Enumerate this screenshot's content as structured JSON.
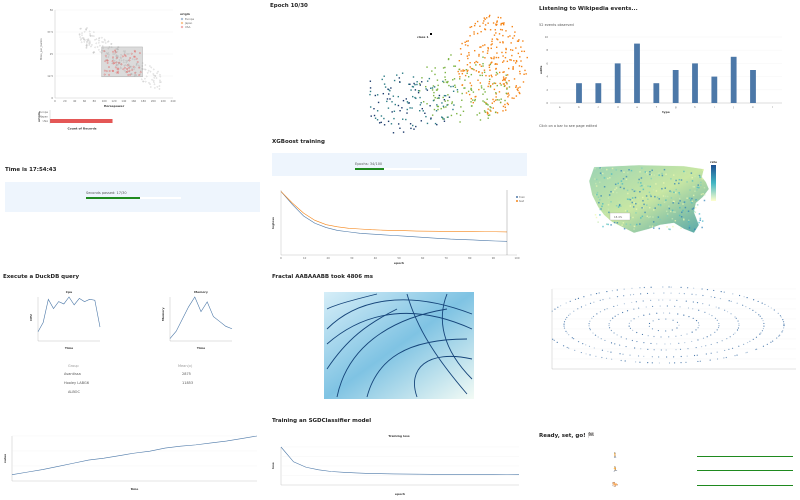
{
  "panels": {
    "p1": {
      "legend": {
        "title": "origin",
        "items": [
          "Europe",
          "Japan",
          "USA"
        ]
      },
      "ylabel": "Miles_per_Gallon",
      "xlabel": "Horsepower",
      "bar_ylabel": "origin",
      "bar_xlabel": "Count of Records",
      "bar_categories": [
        "Europe",
        "Japan",
        "USA"
      ]
    },
    "p2": {
      "title": "Epoch 10/30",
      "annotation": "class 1"
    },
    "p3": {
      "title": "Listening to Wikipedia events...",
      "subtitle": "52 events observed",
      "footer": "Click on a bar to see page edited",
      "ylabel": "edits",
      "xlabel": "type"
    },
    "p4": {
      "title": "Time is 17:54:43",
      "progress_label": "Seconds passed: 17/30",
      "progress": 0.57
    },
    "p5": {
      "title": "XGBoost training",
      "progress_label": "Epochs: 34/100",
      "progress": 0.34,
      "legend": [
        "train",
        "test"
      ],
      "xlabel": "epoch",
      "ylabel": "logloss"
    },
    "p6": {
      "tooltip": "18.4%",
      "legend_title": "rate"
    },
    "p7": {
      "title": "Execute a DuckDB query",
      "cpu_title": "Cpu",
      "mem_title": "Memory",
      "cpu_ylabel": "CPU",
      "mem_ylabel": "Memory",
      "cpu_xlabel": "Time",
      "mem_xlabel": "Time",
      "table_headers": [
        "Group",
        "Mean(x)"
      ],
      "table_rows": [
        [
          "Avantissa",
          "2875"
        ],
        [
          "Hooley LABG6",
          "11853"
        ],
        [
          "ALBOC",
          ""
        ]
      ]
    },
    "p8": {
      "title": "Fractal AABAAABB took 4806 ms"
    },
    "p9": {},
    "p10": {
      "xlabel": "time",
      "ylabel": "value"
    },
    "p11": {
      "title": "Training an SGDClassifier model",
      "chart_title": "Training loss",
      "xlabel": "epoch",
      "ylabel": "loss"
    },
    "p12": {
      "title": "Ready, set, go! 🏁",
      "runners": [
        "🚶",
        "🏃",
        "🐎"
      ]
    }
  },
  "chart_data": [
    {
      "type": "scatter",
      "title": "",
      "xlabel": "Horsepower",
      "ylabel": "Miles_per_Gallon",
      "xlim": [
        0,
        240
      ],
      "ylim": [
        0,
        50
      ],
      "series": [
        {
          "name": "Europe",
          "color": "#4c78a8"
        },
        {
          "name": "Japan",
          "color": "#f58518"
        },
        {
          "name": "USA",
          "color": "#e45756"
        }
      ]
    },
    {
      "type": "bar",
      "title": "",
      "xlabel": "Count of Records",
      "ylabel": "origin",
      "categories": [
        "Europe",
        "Japan",
        "USA"
      ],
      "values": [
        0,
        0,
        254
      ],
      "xlim": [
        0,
        260
      ]
    },
    {
      "type": "bar",
      "title": "",
      "xlabel": "type",
      "ylabel": "edits",
      "categories": [
        "a",
        "b",
        "c",
        "d",
        "e",
        "f",
        "g",
        "h",
        "i",
        "j",
        "k",
        "l"
      ],
      "values": [
        0,
        3,
        3,
        6,
        9,
        3,
        5,
        6,
        4,
        7,
        5,
        0
      ],
      "ylim": [
        0,
        10
      ]
    },
    {
      "type": "line",
      "title": "",
      "xlabel": "epoch",
      "ylabel": "logloss",
      "xlim": [
        0,
        100
      ],
      "ylim": [
        0.25,
        0.7
      ],
      "series": [
        {
          "name": "train",
          "values": [
            0.69,
            0.6,
            0.52,
            0.47,
            0.44,
            0.42,
            0.41,
            0.4,
            0.395,
            0.39,
            0.385,
            0.38,
            0.375,
            0.37,
            0.365,
            0.36,
            0.357,
            0.354,
            0.35,
            0.347,
            0.345
          ]
        },
        {
          "name": "test",
          "values": [
            0.69,
            0.61,
            0.54,
            0.49,
            0.46,
            0.445,
            0.435,
            0.43,
            0.425,
            0.422,
            0.42,
            0.418,
            0.416,
            0.415,
            0.414,
            0.413,
            0.412,
            0.412,
            0.411,
            0.411,
            0.41
          ]
        }
      ]
    },
    {
      "type": "line",
      "title": "Cpu",
      "xlabel": "Time",
      "ylabel": "CPU",
      "values": [
        20,
        40,
        90,
        70,
        85,
        80,
        95,
        78,
        92,
        85,
        90,
        88,
        30
      ]
    },
    {
      "type": "line",
      "title": "Memory",
      "xlabel": "Time",
      "ylabel": "Memory",
      "values": [
        5,
        20,
        45,
        70,
        90,
        60,
        80,
        50,
        40,
        30,
        25
      ]
    },
    {
      "type": "line",
      "title": "",
      "xlabel": "time",
      "ylabel": "value",
      "values": [
        10,
        14,
        18,
        23,
        28,
        33,
        36,
        40,
        44,
        47,
        52,
        55,
        57,
        60,
        63,
        67,
        71
      ]
    },
    {
      "type": "line",
      "title": "Training loss",
      "xlabel": "epoch",
      "ylabel": "loss",
      "values": [
        0.9,
        0.55,
        0.42,
        0.36,
        0.32,
        0.3,
        0.285,
        0.275,
        0.268,
        0.262,
        0.258,
        0.255,
        0.253,
        0.251,
        0.25,
        0.249,
        0.248,
        0.247,
        0.246,
        0.245
      ]
    }
  ],
  "colors": {
    "blue": "#4c78a8",
    "orange": "#f58518",
    "red": "#e45756",
    "green": "#1f8a1f",
    "barbg": "#eef5fd"
  }
}
